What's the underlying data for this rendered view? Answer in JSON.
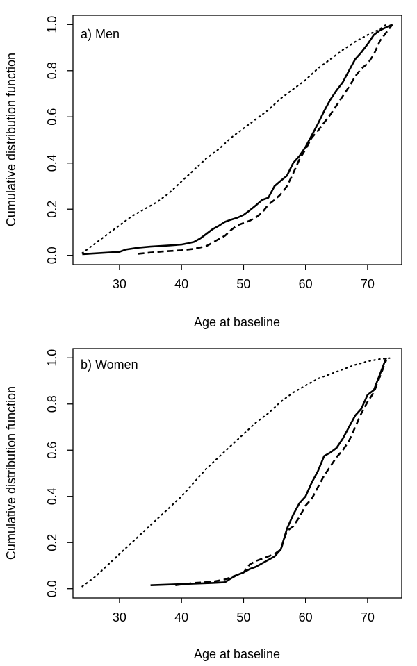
{
  "chart_data": [
    {
      "type": "line",
      "panel_label": "a) Men",
      "xlabel": "Age at baseline",
      "ylabel": "Cumulative distribution function",
      "xlim": [
        22.5,
        75.5
      ],
      "ylim": [
        -0.04,
        1.04
      ],
      "x_ticks": [
        30,
        40,
        50,
        60,
        70
      ],
      "y_ticks": [
        0.0,
        0.2,
        0.4,
        0.6,
        0.8,
        1.0
      ],
      "y_tick_labels": [
        "0.0",
        "0.2",
        "0.4",
        "0.6",
        "0.8",
        "1.0"
      ],
      "series": [
        {
          "name": "solid",
          "style": "solid",
          "points": [
            [
              24,
              0.005
            ],
            [
              30,
              0.015
            ],
            [
              31,
              0.025
            ],
            [
              33,
              0.033
            ],
            [
              35,
              0.038
            ],
            [
              38,
              0.043
            ],
            [
              40,
              0.047
            ],
            [
              41,
              0.052
            ],
            [
              42,
              0.058
            ],
            [
              43,
              0.073
            ],
            [
              44,
              0.093
            ],
            [
              45,
              0.113
            ],
            [
              46,
              0.128
            ],
            [
              47,
              0.145
            ],
            [
              48,
              0.155
            ],
            [
              49,
              0.163
            ],
            [
              50,
              0.175
            ],
            [
              51,
              0.195
            ],
            [
              52,
              0.217
            ],
            [
              53,
              0.24
            ],
            [
              54,
              0.25
            ],
            [
              55,
              0.3
            ],
            [
              56,
              0.323
            ],
            [
              57,
              0.345
            ],
            [
              58,
              0.4
            ],
            [
              59,
              0.43
            ],
            [
              60,
              0.47
            ],
            [
              61,
              0.52
            ],
            [
              62,
              0.57
            ],
            [
              63,
              0.625
            ],
            [
              64,
              0.675
            ],
            [
              65,
              0.715
            ],
            [
              66,
              0.75
            ],
            [
              67,
              0.8
            ],
            [
              68,
              0.85
            ],
            [
              69,
              0.88
            ],
            [
              70,
              0.915
            ],
            [
              71,
              0.955
            ],
            [
              72,
              0.975
            ],
            [
              73,
              0.988
            ],
            [
              74,
              1.0
            ]
          ]
        },
        {
          "name": "dashed",
          "style": "dashed",
          "points": [
            [
              33,
              0.007
            ],
            [
              35,
              0.012
            ],
            [
              37,
              0.017
            ],
            [
              40,
              0.022
            ],
            [
              42,
              0.028
            ],
            [
              44,
              0.04
            ],
            [
              45,
              0.055
            ],
            [
              46,
              0.07
            ],
            [
              47,
              0.085
            ],
            [
              48,
              0.11
            ],
            [
              49,
              0.13
            ],
            [
              50,
              0.14
            ],
            [
              51,
              0.15
            ],
            [
              52,
              0.165
            ],
            [
              53,
              0.185
            ],
            [
              54,
              0.22
            ],
            [
              55,
              0.24
            ],
            [
              56,
              0.265
            ],
            [
              57,
              0.3
            ],
            [
              58,
              0.355
            ],
            [
              59,
              0.415
            ],
            [
              60,
              0.46
            ],
            [
              61,
              0.51
            ],
            [
              62,
              0.54
            ],
            [
              63,
              0.575
            ],
            [
              64,
              0.61
            ],
            [
              65,
              0.65
            ],
            [
              66,
              0.69
            ],
            [
              67,
              0.73
            ],
            [
              68,
              0.775
            ],
            [
              69,
              0.81
            ],
            [
              70,
              0.83
            ],
            [
              71,
              0.87
            ],
            [
              72,
              0.93
            ],
            [
              73,
              0.965
            ],
            [
              74,
              1.0
            ]
          ]
        },
        {
          "name": "dotted",
          "style": "dotted",
          "points": [
            [
              24,
              0.01
            ],
            [
              26,
              0.05
            ],
            [
              28,
              0.09
            ],
            [
              30,
              0.13
            ],
            [
              32,
              0.17
            ],
            [
              34,
              0.2
            ],
            [
              36,
              0.23
            ],
            [
              38,
              0.27
            ],
            [
              40,
              0.32
            ],
            [
              42,
              0.37
            ],
            [
              44,
              0.42
            ],
            [
              46,
              0.46
            ],
            [
              48,
              0.51
            ],
            [
              50,
              0.55
            ],
            [
              52,
              0.59
            ],
            [
              54,
              0.63
            ],
            [
              56,
              0.68
            ],
            [
              58,
              0.72
            ],
            [
              60,
              0.76
            ],
            [
              62,
              0.81
            ],
            [
              64,
              0.85
            ],
            [
              66,
              0.89
            ],
            [
              68,
              0.925
            ],
            [
              70,
              0.955
            ],
            [
              72,
              0.98
            ],
            [
              73,
              1.0
            ]
          ]
        }
      ]
    },
    {
      "type": "line",
      "panel_label": "b) Women",
      "xlabel": "Age at baseline",
      "ylabel": "Cumulative distribution function",
      "xlim": [
        22.5,
        75.5
      ],
      "ylim": [
        -0.04,
        1.04
      ],
      "x_ticks": [
        30,
        40,
        50,
        60,
        70
      ],
      "y_ticks": [
        0.0,
        0.2,
        0.4,
        0.6,
        0.8,
        1.0
      ],
      "y_tick_labels": [
        "0.0",
        "0.2",
        "0.4",
        "0.6",
        "0.8",
        "1.0"
      ],
      "series": [
        {
          "name": "solid",
          "style": "solid",
          "points": [
            [
              35,
              0.015
            ],
            [
              40,
              0.02
            ],
            [
              45,
              0.025
            ],
            [
              47,
              0.028
            ],
            [
              48,
              0.045
            ],
            [
              49,
              0.06
            ],
            [
              50,
              0.07
            ],
            [
              51,
              0.085
            ],
            [
              52,
              0.095
            ],
            [
              53,
              0.11
            ],
            [
              54,
              0.125
            ],
            [
              55,
              0.14
            ],
            [
              56,
              0.17
            ],
            [
              57,
              0.26
            ],
            [
              58,
              0.32
            ],
            [
              59,
              0.37
            ],
            [
              60,
              0.4
            ],
            [
              61,
              0.46
            ],
            [
              62,
              0.51
            ],
            [
              63,
              0.575
            ],
            [
              64,
              0.59
            ],
            [
              65,
              0.61
            ],
            [
              66,
              0.65
            ],
            [
              67,
              0.7
            ],
            [
              68,
              0.75
            ],
            [
              69,
              0.78
            ],
            [
              70,
              0.84
            ],
            [
              71,
              0.86
            ],
            [
              72,
              0.93
            ],
            [
              73,
              1.0
            ]
          ]
        },
        {
          "name": "dashed",
          "style": "dashed",
          "points": [
            [
              39,
              0.015
            ],
            [
              42,
              0.025
            ],
            [
              45,
              0.03
            ],
            [
              47,
              0.04
            ],
            [
              48,
              0.05
            ],
            [
              49,
              0.06
            ],
            [
              50,
              0.07
            ],
            [
              51,
              0.105
            ],
            [
              52,
              0.12
            ],
            [
              53,
              0.13
            ],
            [
              54,
              0.14
            ],
            [
              55,
              0.15
            ],
            [
              56,
              0.17
            ],
            [
              57,
              0.25
            ],
            [
              58,
              0.27
            ],
            [
              59,
              0.31
            ],
            [
              60,
              0.36
            ],
            [
              61,
              0.39
            ],
            [
              62,
              0.44
            ],
            [
              63,
              0.49
            ],
            [
              64,
              0.53
            ],
            [
              65,
              0.57
            ],
            [
              66,
              0.6
            ],
            [
              67,
              0.64
            ],
            [
              68,
              0.7
            ],
            [
              69,
              0.76
            ],
            [
              70,
              0.81
            ],
            [
              71,
              0.85
            ],
            [
              72,
              0.92
            ],
            [
              73,
              0.99
            ]
          ]
        },
        {
          "name": "dotted",
          "style": "dotted",
          "points": [
            [
              24,
              0.01
            ],
            [
              26,
              0.05
            ],
            [
              28,
              0.1
            ],
            [
              30,
              0.15
            ],
            [
              32,
              0.2
            ],
            [
              34,
              0.25
            ],
            [
              36,
              0.3
            ],
            [
              38,
              0.35
            ],
            [
              40,
              0.4
            ],
            [
              42,
              0.46
            ],
            [
              44,
              0.52
            ],
            [
              46,
              0.57
            ],
            [
              48,
              0.62
            ],
            [
              50,
              0.67
            ],
            [
              52,
              0.72
            ],
            [
              54,
              0.76
            ],
            [
              56,
              0.81
            ],
            [
              58,
              0.85
            ],
            [
              60,
              0.88
            ],
            [
              62,
              0.91
            ],
            [
              64,
              0.93
            ],
            [
              66,
              0.95
            ],
            [
              68,
              0.97
            ],
            [
              70,
              0.985
            ],
            [
              72,
              0.995
            ],
            [
              74,
              1.0
            ]
          ]
        }
      ]
    }
  ]
}
